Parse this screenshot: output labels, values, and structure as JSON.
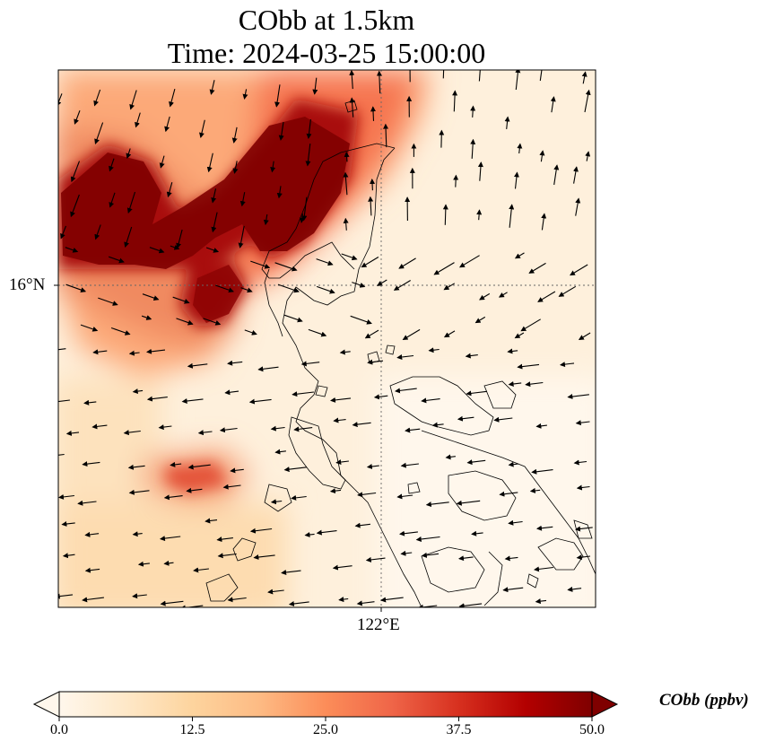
{
  "title_line1": "CObb at 1.5km",
  "title_line2": "Time: 2024-03-25 15:00:00",
  "lat_tick_label": "16°N",
  "lon_tick_label": "122°E",
  "colorbar": {
    "label": "CObb (ppbv)",
    "ticks": [
      "0.0",
      "12.5",
      "25.0",
      "37.5",
      "50.0"
    ],
    "min": 0,
    "max": 50,
    "colormap": "OrRd",
    "colors": [
      "#fff7ec",
      "#fee8c8",
      "#fdd49e",
      "#fdbb84",
      "#fc8d59",
      "#ef6548",
      "#d7301f",
      "#b30000",
      "#7f0000"
    ],
    "extend": "both"
  },
  "map": {
    "gridlines": "dotted",
    "coastline_color": "#000000",
    "wind_arrows": "black",
    "plume_regions": [
      {
        "name": "northern-band",
        "level": 50
      },
      {
        "name": "central-core",
        "level": 45
      },
      {
        "name": "southwest-patch",
        "level": 32
      }
    ]
  }
}
